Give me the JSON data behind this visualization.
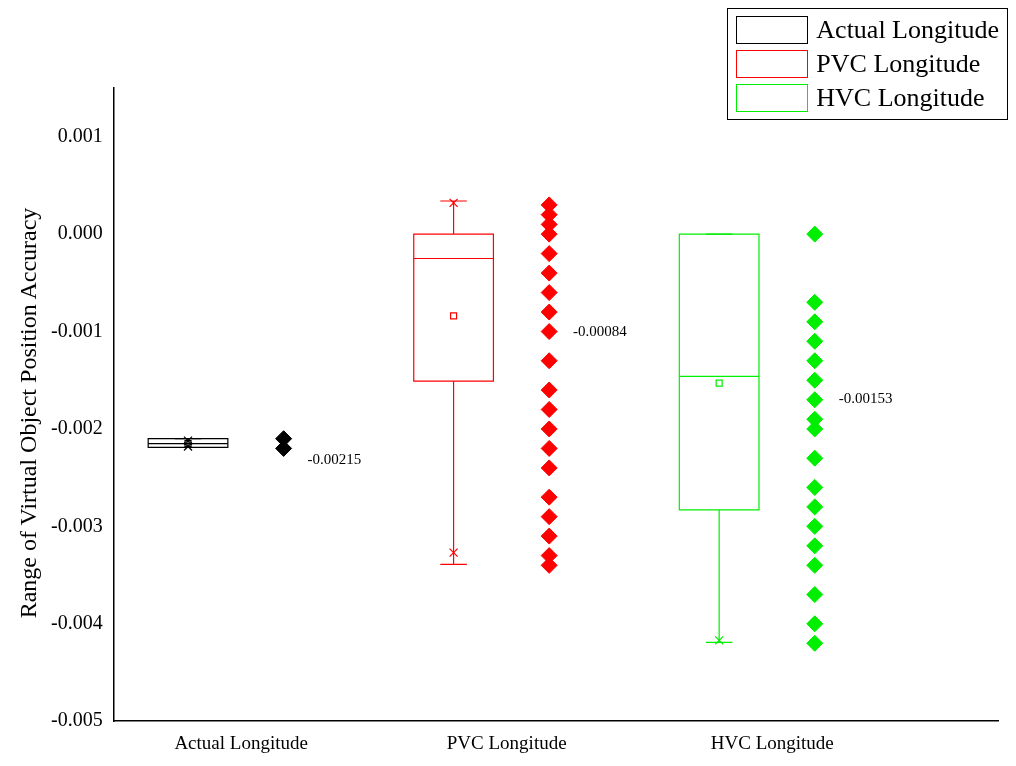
{
  "chart_data": {
    "type": "box",
    "ylabel": "Range of Virtual Object Position Accuracy",
    "categories": [
      "Actual Longitude",
      "PVC Longitude",
      "HVC Longitude"
    ],
    "ylim": [
      -0.005,
      0.0015
    ],
    "yticks": [
      -0.005,
      -0.004,
      -0.003,
      -0.002,
      -0.001,
      {
        "value": 0,
        "label": "0.000"
      },
      0.001
    ],
    "grid": false,
    "legend": "top right",
    "marker": "diamond",
    "series": [
      {
        "name": "Actual Longitude",
        "color": "#000000",
        "boxes": [
          {
            "low": -0.0021,
            "q1": -0.00219,
            "median": -0.00215,
            "q3": -0.0021,
            "high": -0.0021,
            "mean": -0.00215,
            "outliers": [
              -0.00212,
              -0.00218
            ]
          },
          null,
          null
        ]
      },
      {
        "name": "PVC Longitude",
        "color": "#ff0000",
        "boxes": [
          null,
          {
            "low": -0.00339,
            "q1": -0.00151,
            "median": -0.00025,
            "q3": 0,
            "high": 0.00034,
            "mean": -0.00084,
            "outliers": [
              0.00032,
              -0.00327
            ]
          },
          null
        ]
      },
      {
        "name": "HVC Longitude",
        "color": "#00ee00",
        "boxes": [
          null,
          null,
          {
            "low": -0.00419,
            "q1": -0.00283,
            "median": -0.00146,
            "q3": 0,
            "high": 0,
            "mean": -0.00153,
            "outliers": [
              -0.00417
            ]
          }
        ]
      },
      {
        "color": "#000000",
        "type": "scatter",
        "x": [
          "Actual Longitude",
          "Actual Longitude"
        ],
        "values": [
          -0.0021,
          -0.0022
        ]
      },
      {
        "color": "#ff0000",
        "type": "scatter",
        "x": [
          "PVC Longitude",
          "PVC Longitude",
          "PVC Longitude",
          "PVC Longitude",
          "PVC Longitude",
          "PVC Longitude",
          "PVC Longitude",
          "PVC Longitude",
          "PVC Longitude",
          "PVC Longitude",
          "PVC Longitude",
          "PVC Longitude",
          "PVC Longitude",
          "PVC Longitude",
          "PVC Longitude",
          "PVC Longitude",
          "PVC Longitude",
          "PVC Longitude",
          "PVC Longitude",
          "PVC Longitude"
        ],
        "values": [
          0.0003,
          0.0002,
          0.0001,
          0,
          -0.0002,
          -0.0004,
          -0.0006,
          -0.0008,
          -0.001,
          -0.0013,
          -0.0016,
          -0.0018,
          -0.002,
          -0.0022,
          -0.0024,
          -0.0027,
          -0.0029,
          -0.0031,
          -0.0033,
          -0.0034
        ]
      },
      {
        "color": "#00ee00",
        "type": "scatter",
        "x": [
          "HVC Longitude",
          "HVC Longitude",
          "HVC Longitude",
          "HVC Longitude",
          "HVC Longitude",
          "HVC Longitude",
          "HVC Longitude",
          "HVC Longitude",
          "HVC Longitude",
          "HVC Longitude",
          "HVC Longitude",
          "HVC Longitude",
          "HVC Longitude",
          "HVC Longitude",
          "HVC Longitude",
          "HVC Longitude",
          "HVC Longitude",
          "HVC Longitude"
        ],
        "values": [
          0,
          -0.0007,
          -0.0009,
          -0.0011,
          -0.0013,
          -0.0015,
          -0.0017,
          -0.0019,
          -0.002,
          -0.0023,
          -0.0026,
          -0.0028,
          -0.003,
          -0.0032,
          -0.0034,
          -0.0037,
          -0.004,
          -0.0042
        ]
      }
    ],
    "annotations": [
      "-0.00215",
      "-0.00084",
      "-0.00153"
    ]
  }
}
